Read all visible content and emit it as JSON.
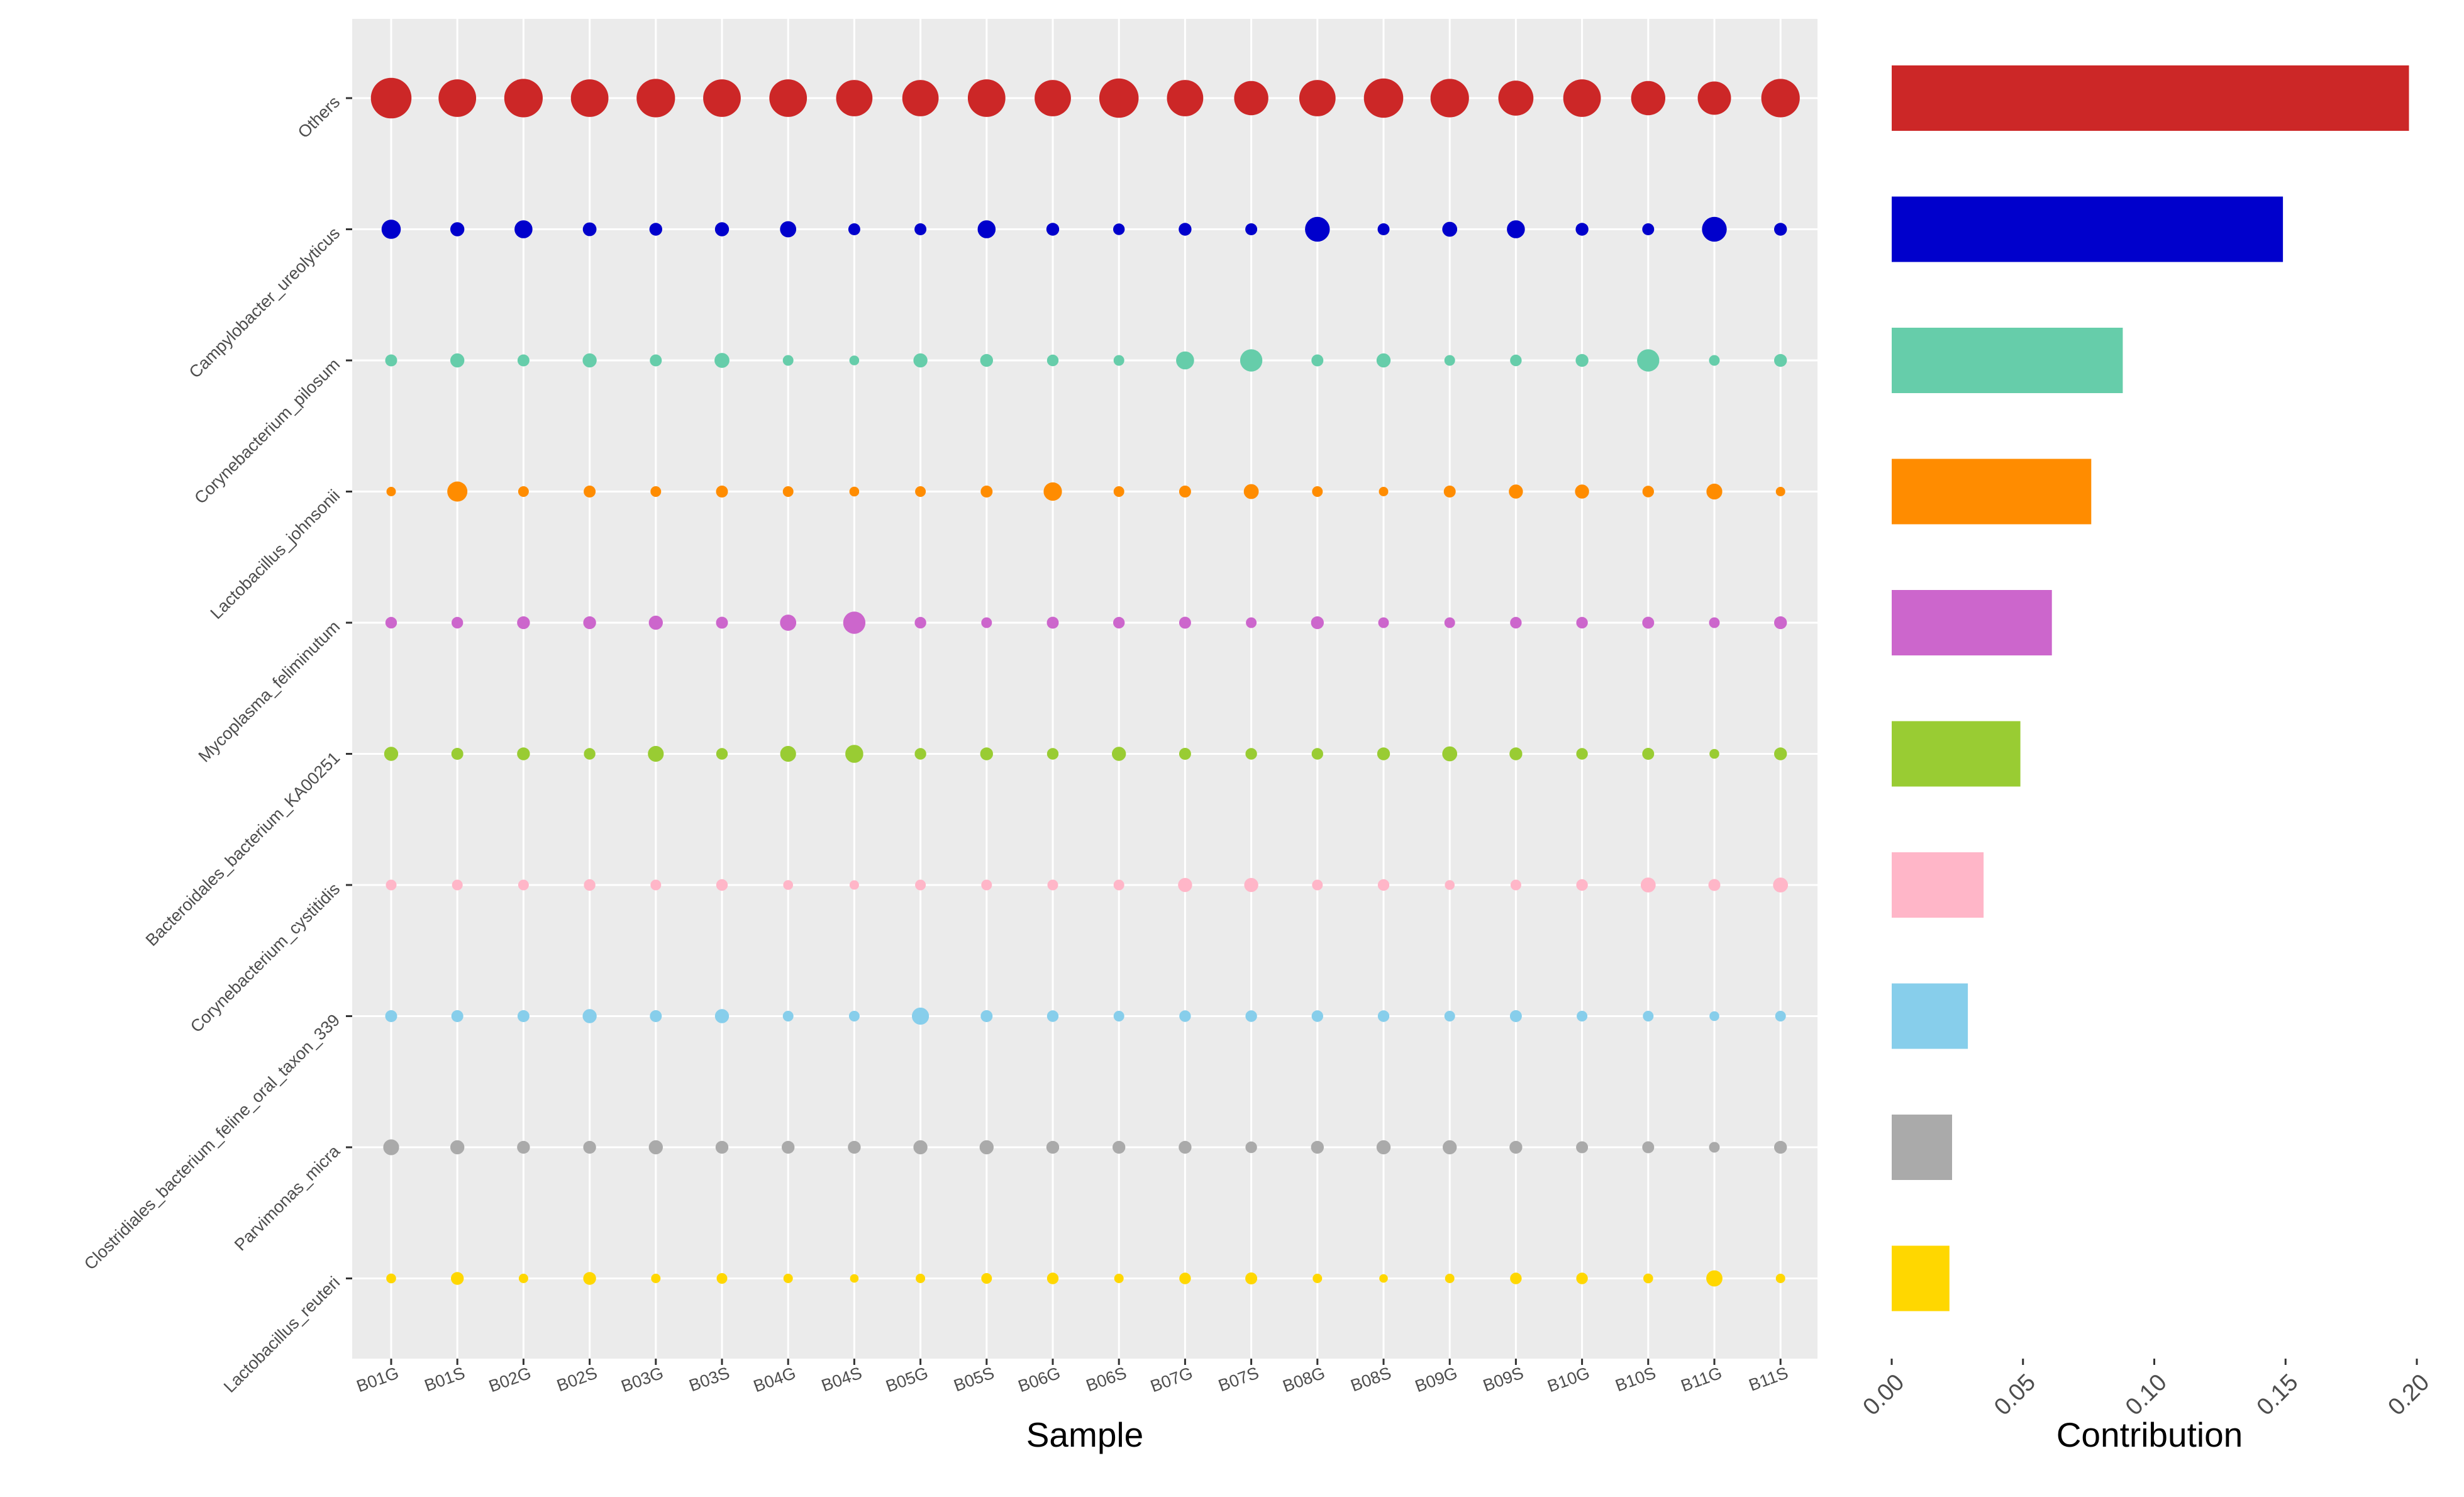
{
  "chart_data": [
    {
      "type": "scatter",
      "subtype": "bubble",
      "xlabel": "Sample",
      "ylabel": "",
      "grid": true,
      "legend": "none",
      "samples": [
        "B01G",
        "B01S",
        "B02G",
        "B02S",
        "B03G",
        "B03S",
        "B04G",
        "B04S",
        "B05G",
        "B05S",
        "B06G",
        "B06S",
        "B07G",
        "B07S",
        "B08G",
        "B08S",
        "B09G",
        "B09S",
        "B10G",
        "B10S",
        "B11G",
        "B11S"
      ],
      "taxa": [
        "Others",
        "Campylobacter_ureolyticus",
        "Corynebacterium_pilosum",
        "Lactobacillus_johnsonii",
        "Mycoplasma_feliminutum",
        "Bacteroidales_bacterium_KA00251",
        "Corynebacterium_cystitidis",
        "Clostridiales_bacterium_feline_oral_taxon_339",
        "Parvimonas_micra",
        "Lactobacillus_reuteri"
      ],
      "colors": [
        "#cc2727",
        "#0000cc",
        "#66cdaa",
        "#ff8c00",
        "#cc66cc",
        "#99cc33",
        "#ffb6c8",
        "#87ceeb",
        "#aaaaaa",
        "#ffd700"
      ],
      "size_unit": "relative bubble size (0-1)",
      "sizes": [
        [
          0.95,
          0.88,
          0.9,
          0.88,
          0.9,
          0.88,
          0.88,
          0.85,
          0.85,
          0.88,
          0.85,
          0.92,
          0.85,
          0.8,
          0.85,
          0.92,
          0.9,
          0.82,
          0.88,
          0.8,
          0.78,
          0.9
        ],
        [
          0.45,
          0.33,
          0.42,
          0.32,
          0.3,
          0.33,
          0.38,
          0.28,
          0.28,
          0.42,
          0.3,
          0.27,
          0.3,
          0.28,
          0.58,
          0.28,
          0.35,
          0.42,
          0.3,
          0.28,
          0.58,
          0.3
        ],
        [
          0.28,
          0.33,
          0.28,
          0.33,
          0.28,
          0.35,
          0.25,
          0.23,
          0.33,
          0.3,
          0.27,
          0.25,
          0.42,
          0.52,
          0.28,
          0.33,
          0.25,
          0.27,
          0.3,
          0.52,
          0.25,
          0.3
        ],
        [
          0.22,
          0.47,
          0.25,
          0.28,
          0.25,
          0.28,
          0.25,
          0.23,
          0.25,
          0.28,
          0.43,
          0.25,
          0.28,
          0.35,
          0.25,
          0.22,
          0.28,
          0.33,
          0.33,
          0.27,
          0.37,
          0.22
        ],
        [
          0.27,
          0.27,
          0.3,
          0.3,
          0.33,
          0.28,
          0.38,
          0.52,
          0.27,
          0.25,
          0.28,
          0.27,
          0.28,
          0.25,
          0.3,
          0.25,
          0.25,
          0.27,
          0.27,
          0.28,
          0.25,
          0.3
        ],
        [
          0.33,
          0.28,
          0.3,
          0.27,
          0.37,
          0.27,
          0.37,
          0.42,
          0.27,
          0.3,
          0.27,
          0.33,
          0.28,
          0.27,
          0.27,
          0.3,
          0.35,
          0.3,
          0.27,
          0.28,
          0.23,
          0.3
        ],
        [
          0.25,
          0.25,
          0.25,
          0.27,
          0.25,
          0.27,
          0.23,
          0.22,
          0.25,
          0.25,
          0.25,
          0.25,
          0.33,
          0.33,
          0.25,
          0.27,
          0.23,
          0.25,
          0.27,
          0.35,
          0.28,
          0.35
        ],
        [
          0.28,
          0.28,
          0.28,
          0.33,
          0.28,
          0.33,
          0.25,
          0.25,
          0.4,
          0.28,
          0.27,
          0.25,
          0.27,
          0.27,
          0.27,
          0.27,
          0.25,
          0.28,
          0.25,
          0.25,
          0.23,
          0.25
        ],
        [
          0.37,
          0.33,
          0.3,
          0.3,
          0.33,
          0.3,
          0.3,
          0.3,
          0.33,
          0.33,
          0.3,
          0.3,
          0.3,
          0.27,
          0.3,
          0.33,
          0.33,
          0.3,
          0.28,
          0.28,
          0.25,
          0.3
        ],
        [
          0.23,
          0.3,
          0.22,
          0.3,
          0.22,
          0.25,
          0.22,
          0.2,
          0.22,
          0.25,
          0.27,
          0.22,
          0.27,
          0.28,
          0.22,
          0.2,
          0.22,
          0.27,
          0.27,
          0.23,
          0.38,
          0.22
        ]
      ]
    },
    {
      "type": "bar",
      "orientation": "horizontal",
      "xlabel": "Contribution",
      "ylabel": "",
      "xlim": [
        0,
        0.2
      ],
      "xticks": [
        "0.00",
        "0.05",
        "0.10",
        "0.15",
        "0.20"
      ],
      "grid": false,
      "legend": "none",
      "categories": [
        "Others",
        "Campylobacter_ureolyticus",
        "Corynebacterium_pilosum",
        "Lactobacillus_johnsonii",
        "Mycoplasma_feliminutum",
        "Bacteroidales_bacterium_KA00251",
        "Corynebacterium_cystitidis",
        "Clostridiales_bacterium_feline_oral_taxon_339",
        "Parvimonas_micra",
        "Lactobacillus_reuteri"
      ],
      "values": [
        0.197,
        0.149,
        0.088,
        0.076,
        0.061,
        0.049,
        0.035,
        0.029,
        0.023,
        0.022
      ],
      "colors": [
        "#cc2727",
        "#0000cc",
        "#66cdaa",
        "#ff8c00",
        "#cc66cc",
        "#99cc33",
        "#ffb6c8",
        "#87ceeb",
        "#aaaaaa",
        "#ffd700"
      ]
    }
  ]
}
